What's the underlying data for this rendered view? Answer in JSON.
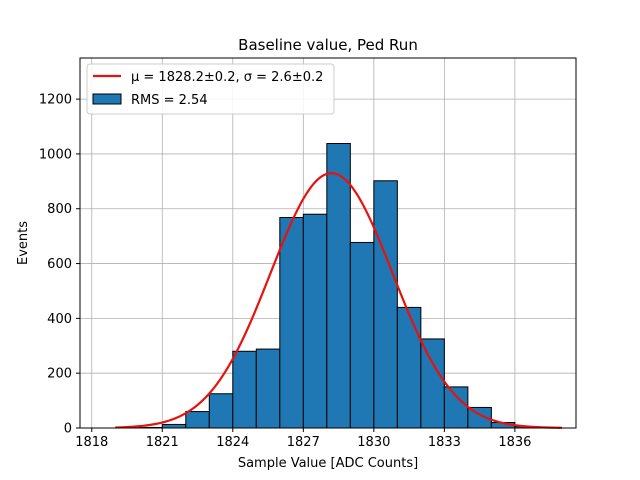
{
  "chart_data": {
    "type": "bar",
    "title": "Baseline value, Ped Run",
    "xlabel": "Sample Value [ADC Counts]",
    "ylabel": "Events",
    "xlim": [
      1817.5,
      1838.6
    ],
    "ylim": [
      0,
      1350
    ],
    "xticks": [
      1818,
      1821,
      1824,
      1827,
      1830,
      1833,
      1836
    ],
    "yticks": [
      0,
      200,
      400,
      600,
      800,
      1000,
      1200
    ],
    "grid": true,
    "legend_position": "top-left",
    "bin_width": 1,
    "bins": [
      {
        "start": 1820,
        "value": 2
      },
      {
        "start": 1821,
        "value": 13
      },
      {
        "start": 1822,
        "value": 60
      },
      {
        "start": 1823,
        "value": 125
      },
      {
        "start": 1824,
        "value": 280
      },
      {
        "start": 1825,
        "value": 288
      },
      {
        "start": 1826,
        "value": 768
      },
      {
        "start": 1827,
        "value": 780
      },
      {
        "start": 1828,
        "value": 1038
      },
      {
        "start": 1829,
        "value": 677
      },
      {
        "start": 1830,
        "value": 902
      },
      {
        "start": 1831,
        "value": 440
      },
      {
        "start": 1832,
        "value": 325
      },
      {
        "start": 1833,
        "value": 150
      },
      {
        "start": 1834,
        "value": 75
      },
      {
        "start": 1835,
        "value": 20
      },
      {
        "start": 1836,
        "value": 5
      }
    ],
    "fit": {
      "type": "gaussian",
      "mu": 1828.2,
      "sigma": 2.6,
      "amplitude": 930,
      "range": [
        1819,
        1838
      ],
      "color": "#e8120c"
    },
    "series": [
      {
        "name": "μ = 1828.2±0.2, σ = 2.6±0.2",
        "kind": "line",
        "color": "#e8120c"
      },
      {
        "name": "RMS = 2.54",
        "kind": "bar",
        "color": "#1f77b4"
      }
    ]
  }
}
